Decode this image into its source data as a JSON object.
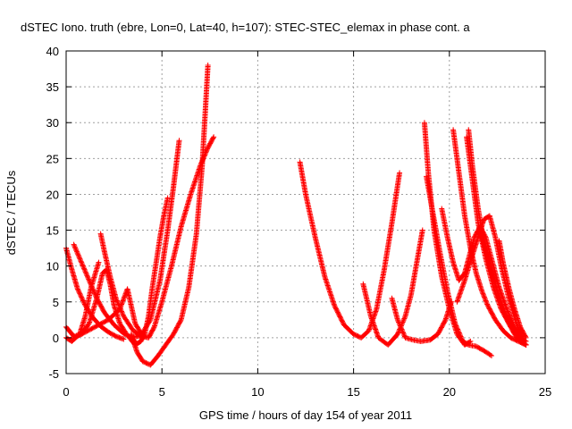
{
  "chart_data": {
    "type": "scatter",
    "title": "dSTEC Iono. truth (ebre, Lon=0, Lat=40, h=107): STEC-STEC_elemax in phase cont. a",
    "xlabel": "GPS time / hours of day 154 of year 2011",
    "ylabel": "dSTEC  / TECUs",
    "xlim": [
      0,
      25
    ],
    "ylim": [
      -5,
      40
    ],
    "xticks": [
      "0",
      "5",
      "10",
      "15",
      "20",
      "25"
    ],
    "yticks": [
      "-5",
      "0",
      "5",
      "10",
      "15",
      "20",
      "25",
      "30",
      "35",
      "40"
    ],
    "grid": true,
    "marker": "+",
    "series_color": "#ff0000",
    "arcs": [
      {
        "x": [
          0.0,
          0.3,
          0.6,
          1.0,
          1.4,
          1.8,
          2.2,
          2.6,
          3.0
        ],
        "y": [
          12.5,
          9.5,
          6.8,
          4.5,
          2.8,
          1.6,
          0.8,
          0.2,
          -0.2
        ]
      },
      {
        "x": [
          0.4,
          0.8,
          1.2,
          1.6,
          2.0,
          2.5,
          3.0,
          3.4,
          3.9,
          4.4,
          4.9,
          5.3,
          5.6,
          5.9
        ],
        "y": [
          13.0,
          10.5,
          8.0,
          5.5,
          3.5,
          1.8,
          0.6,
          0.0,
          0.3,
          2.5,
          8.0,
          15.0,
          21.0,
          27.5
        ]
      },
      {
        "x": [
          0.0,
          0.3,
          0.7,
          1.0,
          1.3,
          1.7
        ],
        "y": [
          0.0,
          -0.5,
          0.5,
          3.0,
          7.0,
          10.5
        ]
      },
      {
        "x": [
          0.0,
          0.4,
          0.8,
          1.2,
          1.6,
          1.9,
          2.1,
          2.3,
          2.5,
          2.8,
          3.2,
          3.6
        ],
        "y": [
          1.5,
          0.2,
          0.5,
          2.0,
          5.5,
          9.0,
          9.5,
          7.5,
          4.5,
          2.0,
          0.3,
          -0.5
        ]
      },
      {
        "x": [
          1.8,
          2.0,
          2.3,
          2.6,
          3.0,
          3.5,
          4.0
        ],
        "y": [
          14.5,
          12.0,
          8.5,
          5.5,
          3.0,
          1.0,
          0.0
        ]
      },
      {
        "x": [
          0.2,
          0.8,
          1.5,
          2.2,
          2.8,
          3.2,
          3.6,
          4.0,
          4.3,
          4.6,
          5.0,
          5.5,
          6.0,
          6.5,
          7.0,
          7.4,
          7.7
        ],
        "y": [
          -0.3,
          0.5,
          1.5,
          2.5,
          4.0,
          6.8,
          2.0,
          0.2,
          0.0,
          1.5,
          5.0,
          10.0,
          15.5,
          20.0,
          24.0,
          26.5,
          28.0
        ]
      },
      {
        "x": [
          3.4,
          3.7,
          4.0,
          4.4,
          4.8,
          5.2,
          5.6,
          6.0,
          6.4,
          6.8,
          7.1,
          7.4
        ],
        "y": [
          0.5,
          -2.0,
          -3.3,
          -3.8,
          -2.5,
          -1.0,
          0.5,
          2.5,
          7.0,
          14.5,
          24.0,
          38.0
        ]
      },
      {
        "x": [
          3.3,
          3.6,
          3.9,
          4.1,
          4.3,
          4.5,
          4.7,
          4.9,
          5.1,
          5.3
        ],
        "y": [
          0.0,
          -1.0,
          -0.5,
          0.5,
          3.0,
          7.0,
          10.5,
          14.0,
          17.0,
          19.5
        ]
      },
      {
        "x": [
          12.2,
          12.5,
          13.0,
          13.5,
          14.0,
          14.5,
          15.0,
          15.4,
          15.8,
          16.2,
          16.6,
          17.0,
          17.4
        ],
        "y": [
          24.5,
          20.0,
          14.0,
          8.5,
          4.5,
          1.8,
          0.5,
          0.0,
          1.0,
          4.0,
          9.5,
          16.0,
          23.0
        ]
      },
      {
        "x": [
          15.5,
          15.9,
          16.3,
          16.8,
          17.3,
          17.7,
          18.0,
          18.3,
          18.6
        ],
        "y": [
          7.5,
          3.0,
          0.0,
          -1.0,
          0.5,
          3.0,
          6.0,
          10.5,
          15.0
        ]
      },
      {
        "x": [
          17.0,
          17.3,
          17.7,
          18.1,
          18.5,
          19.0,
          19.4,
          19.8,
          20.1
        ],
        "y": [
          5.5,
          2.5,
          0.0,
          -0.3,
          -0.5,
          -0.3,
          0.5,
          2.5,
          5.0
        ]
      },
      {
        "x": [
          18.7,
          18.9,
          19.2,
          19.6,
          20.0,
          20.4,
          20.8,
          21.1
        ],
        "y": [
          30.0,
          23.0,
          15.0,
          8.5,
          4.0,
          0.5,
          -1.0,
          -0.5
        ]
      },
      {
        "x": [
          18.8,
          19.1,
          19.5,
          19.9,
          20.3,
          20.7,
          21.0,
          21.4,
          21.8,
          22.2
        ],
        "y": [
          22.5,
          18.0,
          12.0,
          6.5,
          2.0,
          -0.5,
          -1.0,
          -1.2,
          -1.8,
          -2.5
        ]
      },
      {
        "x": [
          20.2,
          20.5,
          20.8,
          21.1,
          21.4,
          21.7,
          22.0,
          22.4,
          22.8,
          23.2,
          23.6,
          24.0
        ],
        "y": [
          29.0,
          23.0,
          17.0,
          12.5,
          9.0,
          6.5,
          4.5,
          2.5,
          1.0,
          0.0,
          -0.5,
          -1.0
        ]
      },
      {
        "x": [
          21.0,
          21.2,
          21.5,
          21.8,
          22.1,
          22.5,
          22.9,
          23.3,
          23.7,
          24.0
        ],
        "y": [
          29.0,
          24.0,
          18.0,
          13.5,
          10.0,
          6.5,
          3.5,
          1.5,
          0.0,
          -0.5
        ]
      },
      {
        "x": [
          19.6,
          19.9,
          20.2,
          20.5,
          20.8,
          21.0,
          21.3,
          21.6,
          21.9,
          22.2,
          22.6,
          23.0,
          23.4,
          23.8
        ],
        "y": [
          18.0,
          14.0,
          10.5,
          8.0,
          9.0,
          11.0,
          14.0,
          15.5,
          14.0,
          11.0,
          7.0,
          4.0,
          1.5,
          0.0
        ]
      },
      {
        "x": [
          20.4,
          20.8,
          21.2,
          21.5,
          21.8,
          22.1,
          22.4,
          22.7,
          23.1,
          23.5,
          23.9
        ],
        "y": [
          5.0,
          8.0,
          11.5,
          14.0,
          16.5,
          17.0,
          14.0,
          10.0,
          5.5,
          2.0,
          -0.5
        ]
      },
      {
        "x": [
          21.6,
          21.9,
          22.2,
          22.5,
          22.8,
          23.1,
          23.4,
          23.7,
          24.0
        ],
        "y": [
          15.0,
          12.0,
          9.0,
          6.5,
          4.0,
          2.0,
          0.5,
          -0.5,
          -1.0
        ]
      },
      {
        "x": [
          22.6,
          22.8,
          23.1,
          23.4,
          23.7,
          24.0
        ],
        "y": [
          13.5,
          10.5,
          7.0,
          4.0,
          1.5,
          0.0
        ]
      },
      {
        "x": [
          20.9,
          21.2,
          21.5,
          21.9,
          22.3,
          22.7,
          23.1,
          23.5,
          24.0
        ],
        "y": [
          28.0,
          22.0,
          16.0,
          11.0,
          7.0,
          4.0,
          2.0,
          0.5,
          -1.0
        ]
      }
    ]
  }
}
